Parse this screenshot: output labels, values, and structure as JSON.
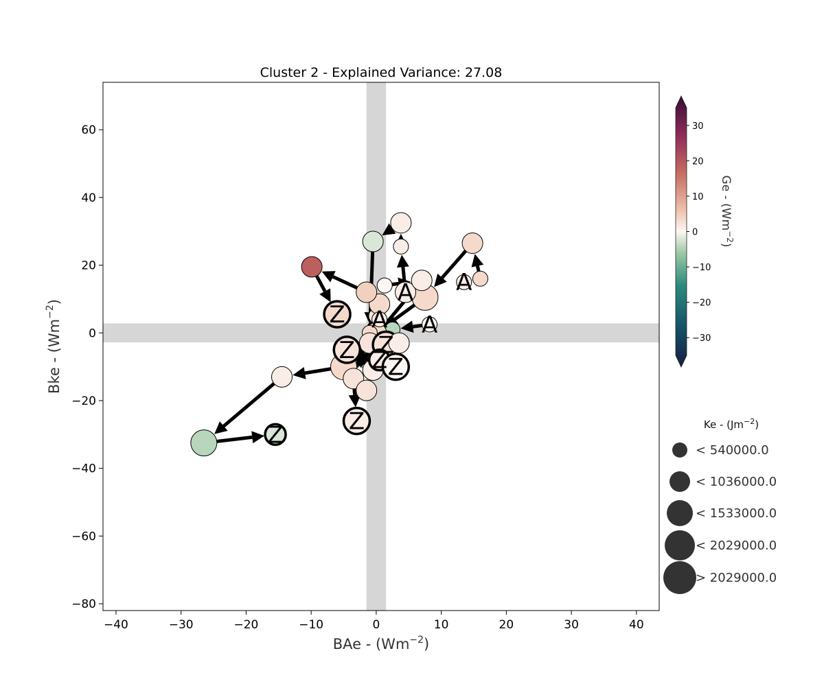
{
  "chart_data": {
    "type": "scatter",
    "title": "Cluster 2 - Explained Variance: 27.08",
    "xlabel": "BAe - (Wm",
    "xlabel_sup": "−2",
    "xlabel_close": ")",
    "ylabel": "Bke - (Wm",
    "ylabel_sup": "−2",
    "ylabel_close": ")",
    "xlim": [
      -42,
      43.5
    ],
    "ylim": [
      -82,
      74
    ],
    "xticks": [
      -40,
      -30,
      -20,
      -10,
      0,
      10,
      20,
      30,
      40
    ],
    "xtick_labels": [
      "−40",
      "−30",
      "−20",
      "−10",
      "0",
      "10",
      "20",
      "30",
      "40"
    ],
    "yticks": [
      -80,
      -60,
      -40,
      -20,
      0,
      20,
      40,
      60
    ],
    "ytick_labels": [
      "−80",
      "−60",
      "−40",
      "−20",
      "0",
      "20",
      "40",
      "60"
    ],
    "grid": false,
    "colorbar": {
      "label": "Ge - (Wm",
      "label_sup": "−2",
      "label_close": ")",
      "range": [
        -35,
        35
      ],
      "ticks": [
        30,
        20,
        10,
        0,
        -10,
        -20,
        -30
      ],
      "tick_labels": [
        "30",
        "20",
        "10",
        "0",
        "−10",
        "−20",
        "−30"
      ],
      "colormap": "curl"
    },
    "size_legend": {
      "title": "Ke - (Jm",
      "title_sup": "−2",
      "title_close": ")",
      "placement": "right",
      "entries": [
        {
          "label": "< 540000.0",
          "level": 1
        },
        {
          "label": "< 1036000.0",
          "level": 2
        },
        {
          "label": "< 1533000.0",
          "level": 3
        },
        {
          "label": "< 2029000.0",
          "level": 4
        },
        {
          "label": "> 2029000.0",
          "level": 5
        }
      ]
    },
    "markers": {
      "start": "A",
      "end": "Z"
    },
    "tracks": [
      {
        "points": [
          {
            "x": 8.2,
            "y": 2.5,
            "ge": 0,
            "ke": 1,
            "tag": "A"
          },
          {
            "x": 2.5,
            "y": 1,
            "ge": -4,
            "ke": 1
          },
          {
            "x": 0,
            "y": 5,
            "ge": 2,
            "ke": 1
          },
          {
            "x": 0.5,
            "y": 8.5,
            "ge": 3,
            "ke": 2
          },
          {
            "x": -1.5,
            "y": 12,
            "ge": 4,
            "ke": 2
          },
          {
            "x": -9.9,
            "y": 19.5,
            "ge": 17,
            "ke": 2
          },
          {
            "x": -6,
            "y": 5.5,
            "ge": 3,
            "ke": 3,
            "tag": "Z"
          }
        ]
      },
      {
        "points": [
          {
            "x": 13.5,
            "y": 15,
            "ge": 1,
            "ke": 1,
            "tag": "A"
          },
          {
            "x": 16,
            "y": 16,
            "ge": 3,
            "ke": 1
          },
          {
            "x": 14.8,
            "y": 26.5,
            "ge": 3,
            "ke": 2
          },
          {
            "x": 7.5,
            "y": 10.5,
            "ge": 3,
            "ke": 3
          },
          {
            "x": 0,
            "y": 0,
            "ge": 3,
            "ke": 2
          },
          {
            "x": -5,
            "y": -10,
            "ge": 3,
            "ke": 3
          },
          {
            "x": -14.5,
            "y": -13,
            "ge": 1,
            "ke": 2
          },
          {
            "x": -26.5,
            "y": -32.5,
            "ge": -4,
            "ke": 3
          },
          {
            "x": -15.5,
            "y": -30,
            "ge": -2,
            "ke": 2,
            "tag": "Z"
          }
        ]
      },
      {
        "points": [
          {
            "x": 4.5,
            "y": 12,
            "ge": 1,
            "ke": 2,
            "tag": "A"
          },
          {
            "x": 3.8,
            "y": 25.5,
            "ge": 1,
            "ke": 1
          },
          {
            "x": 3.8,
            "y": 32.5,
            "ge": 1,
            "ke": 2
          },
          {
            "x": -0.5,
            "y": 27,
            "ge": -2,
            "ke": 2
          },
          {
            "x": -1,
            "y": 0,
            "ge": 3,
            "ke": 1
          },
          {
            "x": -3.5,
            "y": -13.5,
            "ge": 2,
            "ke": 2
          },
          {
            "x": -3,
            "y": -26,
            "ge": 1,
            "ke": 3,
            "tag": "Z"
          }
        ]
      },
      {
        "points": [
          {
            "x": 0.5,
            "y": 4,
            "ge": 1,
            "ke": 1,
            "tag": "A"
          },
          {
            "x": 1.3,
            "y": 14,
            "ge": 0,
            "ke": 1
          },
          {
            "x": 7,
            "y": 15.5,
            "ge": 1,
            "ke": 2
          },
          {
            "x": -1,
            "y": -3,
            "ge": 2,
            "ke": 2
          },
          {
            "x": -1.5,
            "y": -17,
            "ge": 2,
            "ke": 2
          },
          {
            "x": -0.5,
            "y": -11,
            "ge": 1,
            "ke": 2
          },
          {
            "x": -4.5,
            "y": -4.5,
            "ge": 1,
            "ke": 2
          },
          {
            "x": 1.5,
            "y": -3.5,
            "ge": 2,
            "ke": 3,
            "tag": "Z"
          }
        ]
      },
      {
        "points": [
          {
            "x": 3.5,
            "y": -3,
            "ge": 1,
            "ke": 2
          },
          {
            "x": 0.5,
            "y": -8,
            "ge": 1,
            "ke": 2,
            "tag": "Z"
          },
          {
            "x": -4.5,
            "y": -5,
            "ge": 2,
            "ke": 3,
            "tag": "Z"
          },
          {
            "x": 3,
            "y": -10,
            "ge": 0,
            "ke": 3,
            "tag": "Z"
          }
        ]
      }
    ]
  }
}
